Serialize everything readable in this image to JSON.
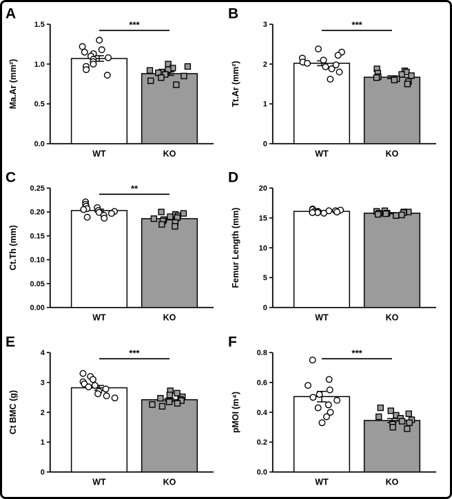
{
  "figure": {
    "background": "#ffffff",
    "border_color": "#000000",
    "bar_colors": {
      "WT": "#ffffff",
      "KO": "#9b9b9b"
    },
    "marker_shapes": {
      "WT": "circle",
      "KO": "square"
    },
    "axis_color": "#000000"
  },
  "chart_data": [
    {
      "type": "bar",
      "panel": "A",
      "ylabel": "Ma.Ar (mm²)",
      "xlabel": "",
      "ylim": [
        0,
        1.5
      ],
      "yticks": [
        0,
        0.5,
        1.0,
        1.5
      ],
      "ytick_labels": [
        "0.0",
        "0.5",
        "1.0",
        "1.5"
      ],
      "categories": [
        "WT",
        "KO"
      ],
      "means": [
        1.07,
        0.88
      ],
      "sem": [
        0.035,
        0.022
      ],
      "significance": "***",
      "points": {
        "WT": [
          1.3,
          1.22,
          1.18,
          1.15,
          1.13,
          1.1,
          1.08,
          1.06,
          1.03,
          1.0,
          0.97,
          0.93,
          0.86
        ],
        "KO": [
          1.0,
          0.97,
          0.95,
          0.93,
          0.92,
          0.9,
          0.89,
          0.87,
          0.85,
          0.83,
          0.79,
          0.74
        ]
      }
    },
    {
      "type": "bar",
      "panel": "B",
      "ylabel": "Tt.Ar (mm²)",
      "xlabel": "",
      "ylim": [
        0,
        3
      ],
      "yticks": [
        0,
        1,
        2,
        3
      ],
      "ytick_labels": [
        "0",
        "1",
        "2",
        "3"
      ],
      "categories": [
        "WT",
        "KO"
      ],
      "means": [
        2.02,
        1.67
      ],
      "sem": [
        0.06,
        0.035
      ],
      "significance": "***",
      "points": {
        "WT": [
          2.38,
          2.3,
          2.22,
          2.15,
          2.1,
          2.05,
          2.02,
          1.98,
          1.93,
          1.88,
          1.8,
          1.62
        ],
        "KO": [
          1.88,
          1.83,
          1.8,
          1.77,
          1.74,
          1.71,
          1.68,
          1.66,
          1.63,
          1.6,
          1.56,
          1.5
        ]
      }
    },
    {
      "type": "bar",
      "panel": "C",
      "ylabel": "Ct.Th (mm)",
      "xlabel": "",
      "ylim": [
        0,
        0.25
      ],
      "yticks": [
        0,
        0.05,
        0.1,
        0.15,
        0.2,
        0.25
      ],
      "ytick_labels": [
        "0.00",
        "0.05",
        "0.10",
        "0.15",
        "0.20",
        "0.25"
      ],
      "categories": [
        "WT",
        "KO"
      ],
      "means": [
        0.203,
        0.186
      ],
      "sem": [
        0.0028,
        0.0025
      ],
      "significance": "**",
      "points": {
        "WT": [
          0.221,
          0.216,
          0.212,
          0.209,
          0.207,
          0.205,
          0.203,
          0.201,
          0.199,
          0.197,
          0.193,
          0.189,
          0.187
        ],
        "KO": [
          0.2,
          0.197,
          0.195,
          0.192,
          0.19,
          0.188,
          0.186,
          0.184,
          0.181,
          0.178,
          0.174,
          0.17
        ]
      }
    },
    {
      "type": "bar",
      "panel": "D",
      "ylabel": "Femur Length (mm)",
      "xlabel": "",
      "ylim": [
        0,
        20
      ],
      "yticks": [
        0,
        5,
        10,
        15,
        20
      ],
      "ytick_labels": [
        "0",
        "5",
        "10",
        "15",
        "20"
      ],
      "categories": [
        "WT",
        "KO"
      ],
      "means": [
        16.1,
        15.8
      ],
      "sem": [
        0.09,
        0.09
      ],
      "significance": null,
      "points": {
        "WT": [
          16.5,
          16.4,
          16.3,
          16.2,
          16.2,
          16.1,
          16.1,
          16.0,
          16.0,
          15.9,
          15.9,
          15.8
        ],
        "KO": [
          16.2,
          16.1,
          16.0,
          16.0,
          15.9,
          15.8,
          15.8,
          15.7,
          15.6,
          15.5,
          15.4
        ]
      }
    },
    {
      "type": "bar",
      "panel": "E",
      "ylabel": "Ct BMC (g)",
      "xlabel": "",
      "ylim": [
        0,
        4
      ],
      "yticks": [
        0,
        1,
        2,
        3,
        4
      ],
      "ytick_labels": [
        "0",
        "1",
        "2",
        "3",
        "4"
      ],
      "categories": [
        "WT",
        "KO"
      ],
      "means": [
        2.82,
        2.42
      ],
      "sem": [
        0.08,
        0.05
      ],
      "significance": "***",
      "points": {
        "WT": [
          3.3,
          3.2,
          3.1,
          3.02,
          2.95,
          2.9,
          2.85,
          2.78,
          2.7,
          2.62,
          2.55,
          2.48
        ],
        "KO": [
          2.72,
          2.64,
          2.58,
          2.52,
          2.47,
          2.43,
          2.39,
          2.35,
          2.3,
          2.26,
          2.2
        ]
      }
    },
    {
      "type": "bar",
      "panel": "F",
      "ylabel": "pMOI (m⁴)",
      "xlabel": "",
      "ylim": [
        0,
        0.8
      ],
      "yticks": [
        0,
        0.2,
        0.4,
        0.6,
        0.8
      ],
      "ytick_labels": [
        "0.0",
        "0.2",
        "0.4",
        "0.6",
        "0.8"
      ],
      "categories": [
        "WT",
        "KO"
      ],
      "means": [
        0.505,
        0.345
      ],
      "sem": [
        0.035,
        0.013
      ],
      "significance": "***",
      "points": {
        "WT": [
          0.75,
          0.62,
          0.58,
          0.55,
          0.52,
          0.5,
          0.48,
          0.45,
          0.43,
          0.4,
          0.37,
          0.33
        ],
        "KO": [
          0.43,
          0.41,
          0.39,
          0.38,
          0.37,
          0.36,
          0.35,
          0.34,
          0.33,
          0.32,
          0.3,
          0.29
        ]
      }
    }
  ]
}
